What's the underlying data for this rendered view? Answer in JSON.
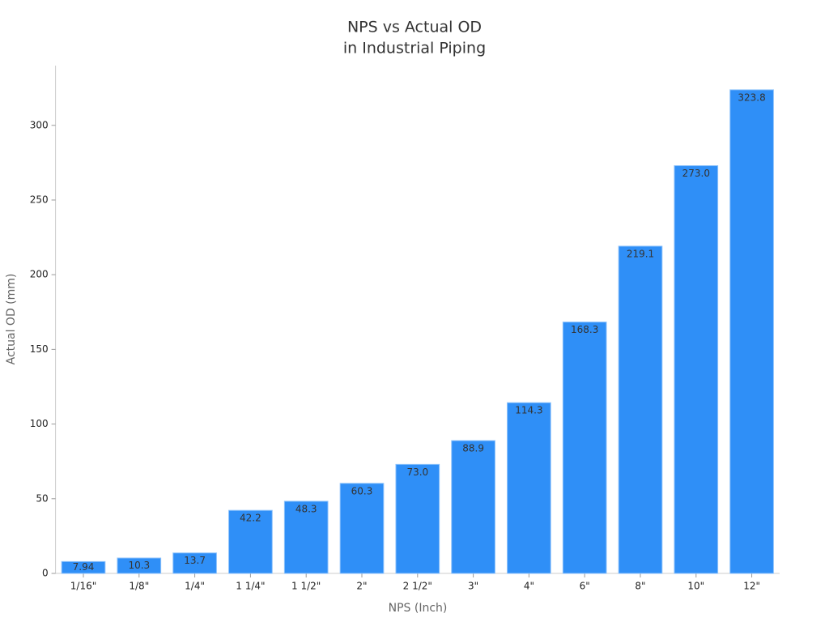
{
  "chart_data": {
    "type": "bar",
    "title": [
      "NPS vs Actual OD",
      "in Industrial Piping"
    ],
    "x_label": "NPS (Inch)",
    "y_label": "Actual OD (mm)",
    "categories": [
      "1/16\"",
      "1/8\"",
      "1/4\"",
      "1 1/4\"",
      "1 1/2\"",
      "2\"",
      "2 1/2\"",
      "3\"",
      "4\"",
      "6\"",
      "8\"",
      "10\"",
      "12\""
    ],
    "values": [
      7.94,
      10.3,
      13.7,
      42.2,
      48.3,
      60.3,
      73.0,
      88.9,
      114.3,
      168.3,
      219.1,
      273.0,
      323.8
    ],
    "value_labels": [
      "7.94",
      "10.3",
      "13.7",
      "42.2",
      "48.3",
      "60.3",
      "73.0",
      "88.9",
      "114.3",
      "168.3",
      "219.1",
      "273.0",
      "323.8"
    ],
    "color": "#2f8ff7",
    "ylim": [
      0,
      340
    ],
    "yticks": [
      0,
      50,
      100,
      150,
      200,
      250,
      300
    ],
    "grid": false
  }
}
